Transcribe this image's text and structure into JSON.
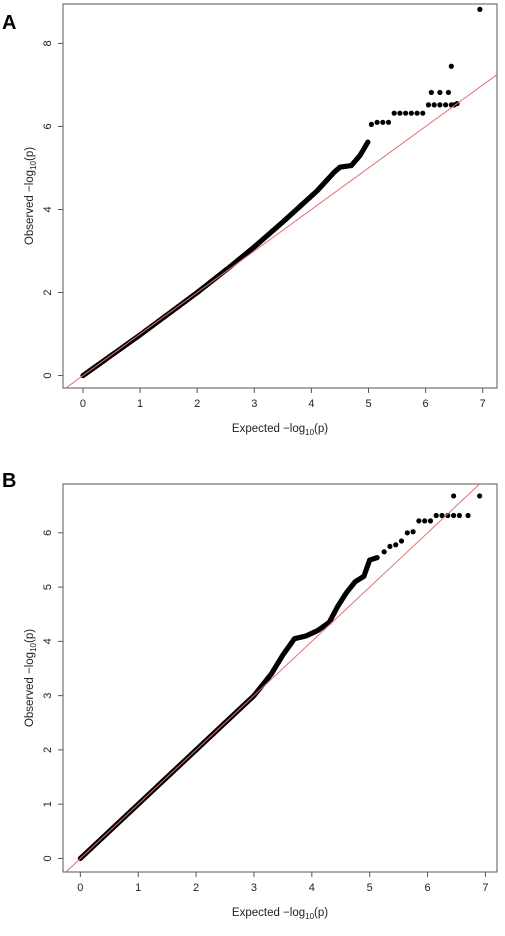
{
  "chart_data": [
    {
      "panel_label": "A",
      "type": "scatter",
      "title": "",
      "xlabel": "Expected −log10(p)",
      "ylabel": "Observed −log10(p)",
      "xlabel_parts": {
        "prefix": "Expected  −log",
        "sub": "10",
        "suffix": "(p)"
      },
      "ylabel_parts": {
        "prefix": "Observed  −log",
        "sub": "10",
        "suffix": "(p)"
      },
      "xlim": [
        -0.35,
        7.25
      ],
      "ylim": [
        -0.3,
        8.95
      ],
      "xticks": [
        0,
        1,
        2,
        3,
        4,
        5,
        6,
        7
      ],
      "yticks": [
        0,
        2,
        4,
        6,
        8
      ],
      "xtick_labels": [
        "0",
        "1",
        "2",
        "3",
        "4",
        "5",
        "6",
        "7"
      ],
      "ytick_labels": [
        "0",
        "2",
        "4",
        "6",
        "8"
      ],
      "grid": false,
      "reference_line": {
        "type": "y=x",
        "color": "#e07070"
      },
      "point_color": "#000000",
      "curve": [
        [
          0,
          0
        ],
        [
          1,
          0.98
        ],
        [
          2,
          2.0
        ],
        [
          2.6,
          2.65
        ],
        [
          3.0,
          3.1
        ],
        [
          3.5,
          3.7
        ],
        [
          3.9,
          4.2
        ],
        [
          4.1,
          4.45
        ],
        [
          4.2,
          4.6
        ],
        [
          4.4,
          4.9
        ],
        [
          4.5,
          5.02
        ],
        [
          4.7,
          5.06
        ],
        [
          4.85,
          5.3
        ],
        [
          5.0,
          5.65
        ]
      ],
      "tail_points": [
        [
          5.05,
          6.05
        ],
        [
          5.15,
          6.1
        ],
        [
          5.25,
          6.1
        ],
        [
          5.35,
          6.1
        ],
        [
          5.45,
          6.32
        ],
        [
          5.55,
          6.32
        ],
        [
          5.65,
          6.32
        ],
        [
          5.75,
          6.32
        ],
        [
          5.85,
          6.32
        ],
        [
          5.95,
          6.32
        ],
        [
          6.05,
          6.52
        ],
        [
          6.15,
          6.52
        ],
        [
          6.25,
          6.52
        ],
        [
          6.35,
          6.52
        ],
        [
          6.45,
          6.52
        ],
        [
          6.5,
          6.52
        ],
        [
          6.55,
          6.55
        ],
        [
          6.1,
          6.82
        ],
        [
          6.25,
          6.82
        ],
        [
          6.4,
          6.82
        ],
        [
          6.45,
          7.45
        ],
        [
          6.95,
          8.82
        ]
      ]
    },
    {
      "panel_label": "B",
      "type": "scatter",
      "title": "",
      "xlabel": "Expected −log10(p)",
      "ylabel": "Observed −log10(p)",
      "xlabel_parts": {
        "prefix": "Expected  −log",
        "sub": "10",
        "suffix": "(p)"
      },
      "ylabel_parts": {
        "prefix": "Observed  −log",
        "sub": "10",
        "suffix": "(p)"
      },
      "xlim": [
        -0.3,
        7.2
      ],
      "ylim": [
        -0.25,
        6.9
      ],
      "xticks": [
        0,
        1,
        2,
        3,
        4,
        5,
        6,
        7
      ],
      "yticks": [
        0,
        1,
        2,
        3,
        4,
        5,
        6
      ],
      "xtick_labels": [
        "0",
        "1",
        "2",
        "3",
        "4",
        "5",
        "6",
        "7"
      ],
      "ytick_labels": [
        "0",
        "1",
        "2",
        "3",
        "4",
        "5",
        "6"
      ],
      "grid": false,
      "reference_line": {
        "type": "y=x",
        "color": "#e07070"
      },
      "point_color": "#000000",
      "curve": [
        [
          0,
          0
        ],
        [
          1,
          1.0
        ],
        [
          2,
          2.0
        ],
        [
          3,
          3.0
        ],
        [
          3.3,
          3.4
        ],
        [
          3.5,
          3.75
        ],
        [
          3.7,
          4.05
        ],
        [
          3.9,
          4.1
        ],
        [
          4.1,
          4.2
        ],
        [
          4.3,
          4.35
        ],
        [
          4.45,
          4.65
        ],
        [
          4.6,
          4.9
        ],
        [
          4.75,
          5.1
        ],
        [
          4.9,
          5.2
        ],
        [
          5.0,
          5.5
        ],
        [
          5.15,
          5.55
        ]
      ],
      "tail_points": [
        [
          5.25,
          5.65
        ],
        [
          5.35,
          5.75
        ],
        [
          5.45,
          5.78
        ],
        [
          5.55,
          5.85
        ],
        [
          5.65,
          6.0
        ],
        [
          5.75,
          6.02
        ],
        [
          5.85,
          6.22
        ],
        [
          5.95,
          6.22
        ],
        [
          6.05,
          6.22
        ],
        [
          6.15,
          6.32
        ],
        [
          6.25,
          6.32
        ],
        [
          6.35,
          6.32
        ],
        [
          6.45,
          6.32
        ],
        [
          6.55,
          6.32
        ],
        [
          6.7,
          6.32
        ],
        [
          6.45,
          6.68
        ],
        [
          6.9,
          6.68
        ]
      ]
    }
  ]
}
